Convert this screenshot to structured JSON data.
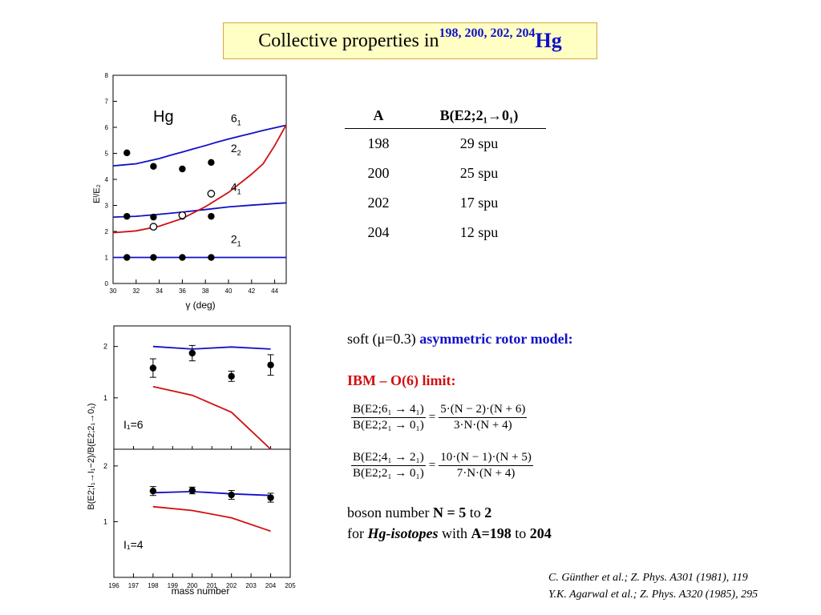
{
  "title": {
    "text": "Collective properties in ",
    "isotopes": "198, 200, 202, 204",
    "element": "Hg"
  },
  "table": {
    "headers": [
      "A",
      "B(E2;2₁→0₁)"
    ],
    "rows": [
      [
        "198",
        "29 spu"
      ],
      [
        "200",
        "25 spu"
      ],
      [
        "202",
        "17 spu"
      ],
      [
        "204",
        "12 spu"
      ]
    ]
  },
  "text": {
    "soft_prefix": "soft (μ=0.3)",
    "soft_model": "asymmetric rotor model:",
    "ibm": "IBM – O(6) limit:",
    "boson_a": "boson number ",
    "boson_b": "N = 5",
    "boson_c": " to ",
    "boson_d": "2",
    "for_a": "for ",
    "for_b": "Hg-isotopes",
    "for_c": " with ",
    "for_d": "A=198",
    "for_e": " to ",
    "for_f": "204"
  },
  "formula1": {
    "num": "B(E2;6₁ → 4₁)",
    "den": "B(E2;2₁ → 0₁)",
    "rnum": "5·(N − 2)·(N + 6)",
    "rden": "3·N·(N + 4)"
  },
  "formula2": {
    "num": "B(E2;4₁ → 2₁)",
    "den": "B(E2;2₁ → 0₁)",
    "rnum": "10·(N − 1)·(N + 5)",
    "rden": "7·N·(N + 4)"
  },
  "references": [
    "C. Günther et al.; Z. Phys. A301 (1981), 119",
    "Y.K. Agarwal et al.; Z. Phys. A320 (1985), 295"
  ],
  "colors": {
    "blue": "#1010c8",
    "red": "#d01010",
    "title_bg": "#ffffc4",
    "title_border": "#d9a63a"
  },
  "chart_data": [
    {
      "type": "line",
      "label": "Hg",
      "xlabel": "γ (deg)",
      "ylabel": "Eᴵ/E₂",
      "xlim": [
        30,
        45
      ],
      "ylim": [
        0,
        8
      ],
      "xticks": [
        30,
        32,
        34,
        36,
        38,
        40,
        42,
        44
      ],
      "yticks": [
        0,
        1,
        2,
        3,
        4,
        5,
        6,
        7,
        8
      ],
      "series": [
        {
          "name": "6₁",
          "color": "#1010c8",
          "x": [
            30,
            31,
            32,
            33,
            34,
            35,
            36,
            37,
            38,
            39,
            40,
            41,
            42,
            43,
            44,
            45
          ],
          "y": [
            4.52,
            4.56,
            4.6,
            4.7,
            4.8,
            4.93,
            5.05,
            5.18,
            5.3,
            5.43,
            5.55,
            5.66,
            5.77,
            5.88,
            5.98,
            6.08
          ]
        },
        {
          "name": "2₂",
          "color": "#1010c8",
          "x": [
            30,
            32,
            34,
            36,
            38,
            40,
            42,
            44,
            45
          ],
          "y": [
            2.55,
            2.58,
            2.66,
            2.74,
            2.84,
            2.94,
            3.01,
            3.07,
            3.1
          ]
        },
        {
          "name": "4₁",
          "color": "#d01010",
          "x": [
            30,
            32,
            34,
            36,
            38,
            40,
            42,
            43,
            44,
            45
          ],
          "y": [
            1.95,
            2.02,
            2.2,
            2.5,
            2.95,
            3.5,
            4.2,
            4.6,
            5.3,
            6.1
          ]
        },
        {
          "name": "2₁",
          "color": "#1010c8",
          "x": [
            30,
            45
          ],
          "y": [
            1.0,
            1.0
          ]
        }
      ],
      "points_filled": [
        {
          "x": 31.2,
          "y": 5.02
        },
        {
          "x": 33.5,
          "y": 4.5
        },
        {
          "x": 36.0,
          "y": 4.4
        },
        {
          "x": 38.5,
          "y": 4.65
        },
        {
          "x": 31.2,
          "y": 2.58
        },
        {
          "x": 33.5,
          "y": 2.55
        },
        {
          "x": 36.0,
          "y": 2.58
        },
        {
          "x": 38.5,
          "y": 2.58
        },
        {
          "x": 31.2,
          "y": 1.0
        },
        {
          "x": 33.5,
          "y": 1.0
        },
        {
          "x": 36.0,
          "y": 1.0
        },
        {
          "x": 38.5,
          "y": 1.0
        }
      ],
      "points_open": [
        {
          "x": 33.5,
          "y": 2.18
        },
        {
          "x": 36.0,
          "y": 2.62
        },
        {
          "x": 38.5,
          "y": 3.45
        }
      ]
    },
    {
      "type": "line",
      "label": "I₁=6",
      "ylabel": "B(E2;I₁→I₁−2)/B(E2;2₁→0₁)",
      "xlim": [
        196,
        205
      ],
      "ylim": [
        0,
        2.4
      ],
      "yticks": [
        1,
        2
      ],
      "series": [
        {
          "name": "rotor",
          "color": "#1010c8",
          "x": [
            198,
            200,
            202,
            204
          ],
          "y": [
            2.0,
            1.95,
            1.99,
            1.95
          ]
        },
        {
          "name": "O(6)",
          "color": "#d01010",
          "x": [
            198,
            200,
            202,
            204
          ],
          "y": [
            1.22,
            1.05,
            0.72,
            0.0
          ]
        }
      ],
      "points": [
        {
          "x": 198,
          "y": 1.58,
          "err": 0.18
        },
        {
          "x": 200,
          "y": 1.87,
          "err": 0.15
        },
        {
          "x": 202,
          "y": 1.42,
          "err": 0.1
        },
        {
          "x": 204,
          "y": 1.64,
          "err": 0.2
        }
      ]
    },
    {
      "type": "line",
      "label": "I₁=4",
      "xlabel": "mass number",
      "xlim": [
        196,
        205
      ],
      "ylim": [
        0,
        2.3
      ],
      "xticks": [
        196,
        197,
        198,
        199,
        200,
        201,
        202,
        203,
        204,
        205
      ],
      "yticks": [
        1,
        2
      ],
      "series": [
        {
          "name": "rotor",
          "color": "#1010c8",
          "x": [
            198,
            200,
            202,
            204
          ],
          "y": [
            1.52,
            1.54,
            1.5,
            1.47
          ]
        },
        {
          "name": "O(6)",
          "color": "#d01010",
          "x": [
            198,
            200,
            202,
            204
          ],
          "y": [
            1.27,
            1.2,
            1.07,
            0.83
          ]
        }
      ],
      "points": [
        {
          "x": 198,
          "y": 1.55,
          "err": 0.08
        },
        {
          "x": 200,
          "y": 1.56,
          "err": 0.06
        },
        {
          "x": 202,
          "y": 1.48,
          "err": 0.08
        },
        {
          "x": 204,
          "y": 1.43,
          "err": 0.08
        }
      ]
    }
  ]
}
